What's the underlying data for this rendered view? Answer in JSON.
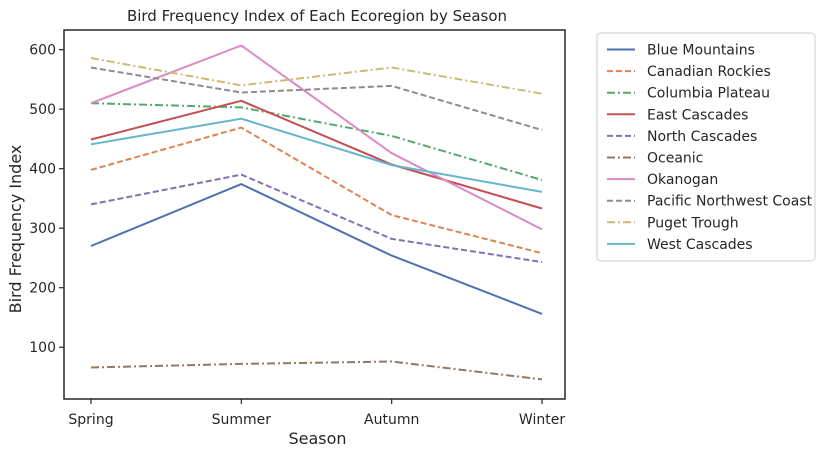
{
  "chart_data": {
    "type": "line",
    "title": "Bird Frequency Index of Each Ecoregion by Season",
    "xlabel": "Season",
    "ylabel": "Bird Frequency Index",
    "categories": [
      "Spring",
      "Summer",
      "Autumn",
      "Winter"
    ],
    "ylim": [
      13,
      633
    ],
    "yticks": [
      100,
      200,
      300,
      400,
      500,
      600
    ],
    "grid": false,
    "legend_position": "outside-right",
    "series": [
      {
        "name": "Blue Mountains",
        "values": [
          270,
          374,
          254,
          156
        ],
        "color": "#4c72b0",
        "dash": "solid"
      },
      {
        "name": "Canadian Rockies",
        "values": [
          398,
          469,
          322,
          258
        ],
        "color": "#dd8452",
        "dash": "dashed"
      },
      {
        "name": "Columbia Plateau",
        "values": [
          510,
          503,
          455,
          381
        ],
        "color": "#55a868",
        "dash": "dashdot"
      },
      {
        "name": "East Cascades",
        "values": [
          449,
          514,
          407,
          333
        ],
        "color": "#c44e52",
        "dash": "solid"
      },
      {
        "name": "North Cascades",
        "values": [
          340,
          390,
          282,
          243
        ],
        "color": "#8172b3",
        "dash": "dashed"
      },
      {
        "name": "Oceanic",
        "values": [
          66,
          72,
          76,
          46
        ],
        "color": "#937860",
        "dash": "dashdot"
      },
      {
        "name": "Okanogan",
        "values": [
          510,
          607,
          426,
          298
        ],
        "color": "#da8bc3",
        "dash": "solid"
      },
      {
        "name": "Pacific Northwest Coast",
        "values": [
          570,
          528,
          539,
          465
        ],
        "color": "#8c8c8c",
        "dash": "dashed"
      },
      {
        "name": "Puget Trough",
        "values": [
          586,
          540,
          570,
          526
        ],
        "color": "#ccb974",
        "dash": "dashdot"
      },
      {
        "name": "West Cascades",
        "values": [
          441,
          484,
          406,
          361
        ],
        "color": "#64b5cd",
        "dash": "solid"
      }
    ]
  }
}
